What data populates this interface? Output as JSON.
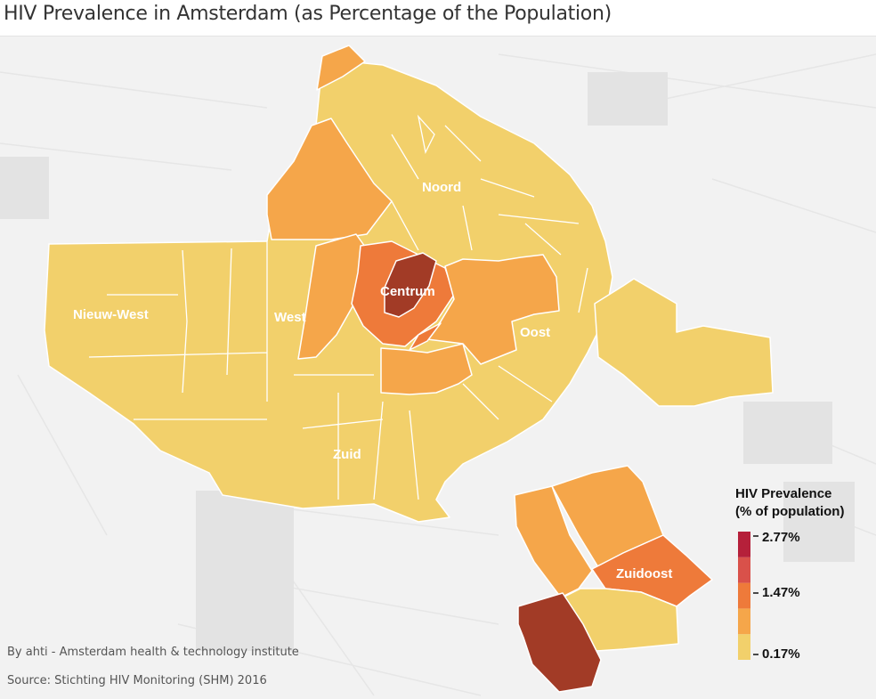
{
  "title": "HIV Prevalence in Amsterdam (as Percentage of the Population)",
  "districts": [
    {
      "name": "Noord",
      "prevalence_level": "low"
    },
    {
      "name": "Centrum",
      "prevalence_level": "highest"
    },
    {
      "name": "Nieuw-West",
      "prevalence_level": "low"
    },
    {
      "name": "West",
      "prevalence_level": "low-medium"
    },
    {
      "name": "Oost",
      "prevalence_level": "low-medium"
    },
    {
      "name": "Zuid",
      "prevalence_level": "low-medium"
    },
    {
      "name": "Zuidoost",
      "prevalence_level": "medium-high"
    }
  ],
  "legend": {
    "title_line1": "HIV Prevalence",
    "title_line2": "(% of population)",
    "tick_max": "2.77%",
    "tick_mid": "1.47%",
    "tick_min": "0.17%",
    "scale_min": 0.17,
    "scale_mid": 1.47,
    "scale_max": 2.77,
    "colors": [
      "#f2d06b",
      "#f5a64a",
      "#ee7a3a",
      "#d9514a",
      "#b5203a"
    ]
  },
  "colors": {
    "low": "#f2d06b",
    "low_medium": "#f5a64a",
    "medium": "#ee7a3a",
    "high": "#d9514a",
    "highest": "#a23b26",
    "background": "#f2f2f2",
    "boundary": "#ffffff"
  },
  "credits": {
    "author": "By ahti - Amsterdam health & technology institute",
    "source": "Source: Stichting HIV Monitoring (SHM) 2016"
  }
}
